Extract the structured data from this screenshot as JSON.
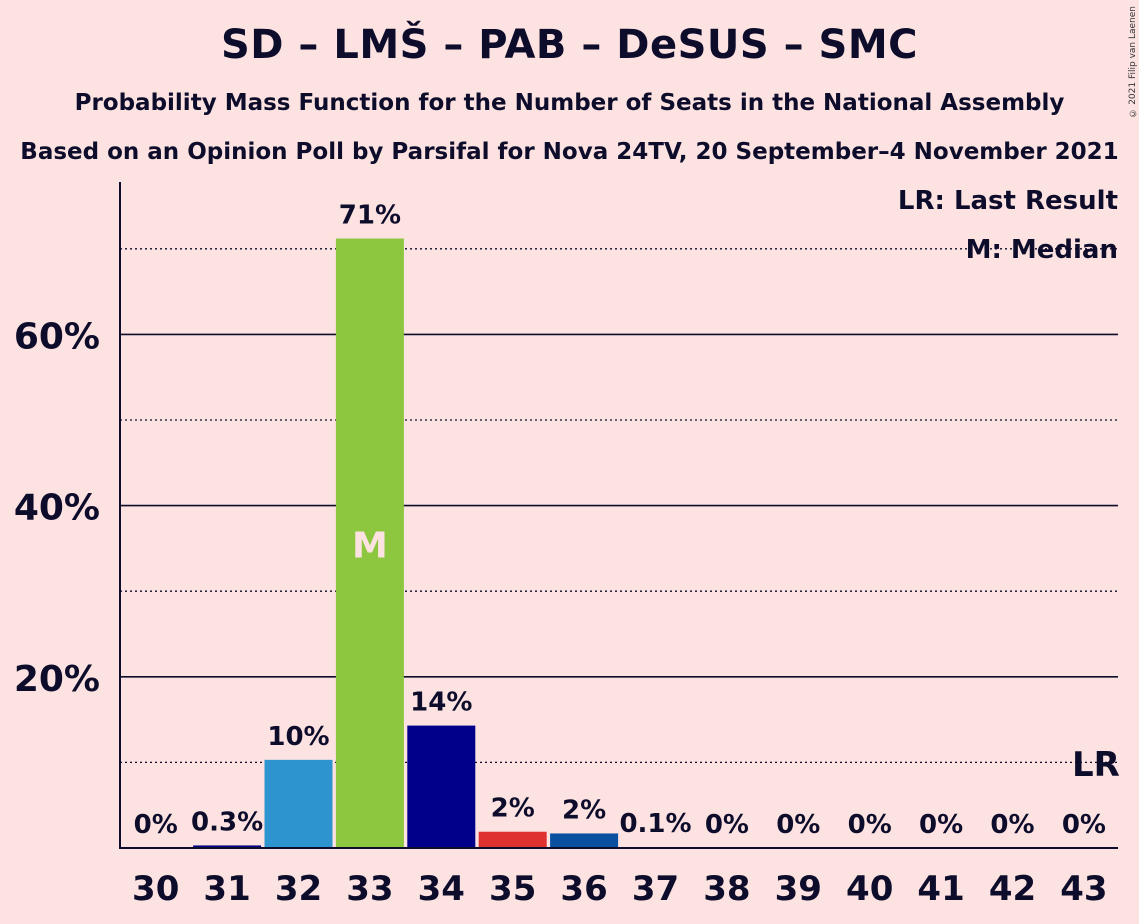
{
  "title": "SD – LMŠ – PAB – DeSUS – SMC",
  "subtitle1": "Probability Mass Function for the Number of Seats in the National Assembly",
  "subtitle2": "Based on an Opinion Poll by Parsifal for Nova 24TV, 20 September–4 November 2021",
  "copyright": "© 2021 Filip van Laenen",
  "legend": {
    "lr": "LR: Last Result",
    "m": "M: Median"
  },
  "chart_data": {
    "type": "bar",
    "categories": [
      "30",
      "31",
      "32",
      "33",
      "34",
      "35",
      "36",
      "37",
      "38",
      "39",
      "40",
      "41",
      "42",
      "43"
    ],
    "values": [
      0,
      0.3,
      10.3,
      71.2,
      14.3,
      1.9,
      1.7,
      0.1,
      0,
      0,
      0,
      0,
      0,
      0
    ],
    "labels": [
      "0%",
      "0.3%",
      "10%",
      "71%",
      "14%",
      "2%",
      "2%",
      "0.1%",
      "0%",
      "0%",
      "0%",
      "0%",
      "0%",
      "0%"
    ],
    "colors": [
      "#2e94d0",
      "#00008b",
      "#2e94d0",
      "#8dc63f",
      "#00008b",
      "#e03131",
      "#0b4fa0",
      "#2e94d0",
      "#2e94d0",
      "#2e94d0",
      "#2e94d0",
      "#2e94d0",
      "#2e94d0",
      "#2e94d0"
    ],
    "median_category": "33",
    "median_label": "M",
    "last_result_category": "43",
    "last_result_label": "LR",
    "ylim": [
      0,
      78
    ],
    "yticks_major": [
      20,
      40,
      60
    ],
    "yticks_minor": [
      10,
      30,
      50,
      70
    ],
    "ytick_labels": [
      "20%",
      "40%",
      "60%"
    ],
    "grid": true,
    "legend_position": "top-right"
  }
}
